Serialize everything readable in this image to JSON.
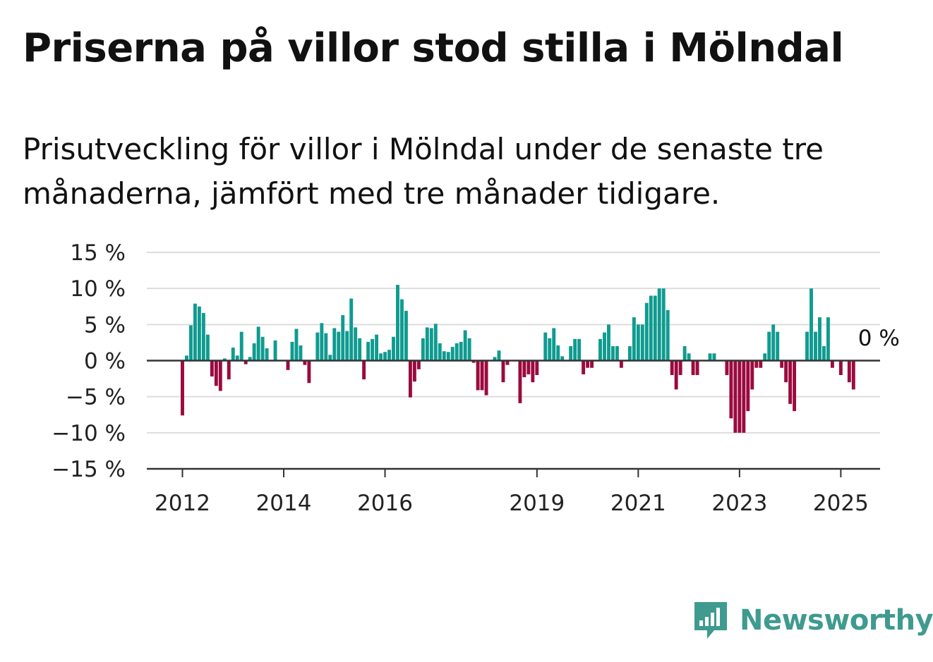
{
  "title": "Priserna på villor stod stilla i Mölndal",
  "subtitle": "Prisutveckling för villor i Mölndal under de senaste tre månaderna, jämfört med tre månader tidigare.",
  "brand": {
    "name": "Newsworthy",
    "color": "#3f9a8f"
  },
  "colors": {
    "positive": "#0f9b90",
    "negative": "#9b0a3e",
    "grid": "#dddddd",
    "axis": "#333333"
  },
  "chart_data": {
    "type": "bar",
    "title": "",
    "xlabel": "",
    "ylabel": "",
    "ylim": [
      -15,
      15
    ],
    "y_ticks": [
      15,
      10,
      5,
      0,
      -5,
      -10,
      -15
    ],
    "y_tick_labels": [
      "15 %",
      "10 %",
      "5 %",
      "0 %",
      "−5 %",
      "−10 %",
      "−15 %"
    ],
    "x_ticks": [
      {
        "label": "2012",
        "index": 0
      },
      {
        "label": "2014",
        "index": 24
      },
      {
        "label": "2016",
        "index": 48
      },
      {
        "label": "2019",
        "index": 84
      },
      {
        "label": "2021",
        "index": 108
      },
      {
        "label": "2023",
        "index": 132
      },
      {
        "label": "2025",
        "index": 156
      }
    ],
    "grid": true,
    "annotation": "0 %",
    "values": [
      -7.6,
      0.7,
      4.9,
      7.9,
      7.5,
      6.6,
      3.6,
      -2.2,
      -3.5,
      -4.2,
      0.3,
      -2.6,
      1.8,
      0.7,
      4.0,
      -0.5,
      0.5,
      2.4,
      4.7,
      3.3,
      1.7,
      0,
      2.8,
      0,
      0,
      -1.3,
      2.6,
      4.4,
      2.1,
      -0.6,
      -3.1,
      0,
      3.9,
      5.2,
      3.8,
      0.8,
      4.5,
      4.0,
      6.3,
      4.1,
      8.6,
      4.6,
      3.1,
      -2.6,
      2.6,
      3.0,
      3.6,
      1.0,
      1.2,
      1.5,
      3.3,
      10.5,
      8.5,
      6.9,
      -5.1,
      -2.9,
      -1.2,
      3.1,
      4.6,
      4.5,
      5.1,
      2.4,
      1.3,
      1.2,
      1.9,
      2.4,
      2.6,
      4.2,
      3.1,
      -0.3,
      -4.1,
      -4.1,
      -4.8,
      0,
      0.5,
      1.4,
      -3.0,
      -0.6,
      0,
      0,
      -5.9,
      -2.3,
      -1.9,
      -3.0,
      -2.0,
      0,
      3.9,
      3.1,
      4.5,
      2.1,
      0.6,
      0,
      2.0,
      3.0,
      3.0,
      -1.9,
      -1.0,
      -1.0,
      0,
      3.0,
      3.9,
      5.0,
      2.0,
      2.0,
      -1.0,
      0,
      2.0,
      6.0,
      5.0,
      5.0,
      8.0,
      9.0,
      9.0,
      10.0,
      10.0,
      7.0,
      -2.0,
      -4.0,
      -2.0,
      2.0,
      1.0,
      -2.0,
      -2.0,
      0,
      0,
      1.0,
      1.0,
      0,
      0,
      -2.0,
      -8.0,
      -10.0,
      -10.0,
      -10.0,
      -7.0,
      -4.0,
      -1.0,
      -1.0,
      1.0,
      4.0,
      5.0,
      4.0,
      -1.0,
      -3.0,
      -6.0,
      -7.0,
      0,
      0,
      4.0,
      10.0,
      4.0,
      6.0,
      2.0,
      6.0,
      -1.0,
      0,
      -2.0,
      0,
      -3.0,
      -4.0,
      0
    ]
  }
}
